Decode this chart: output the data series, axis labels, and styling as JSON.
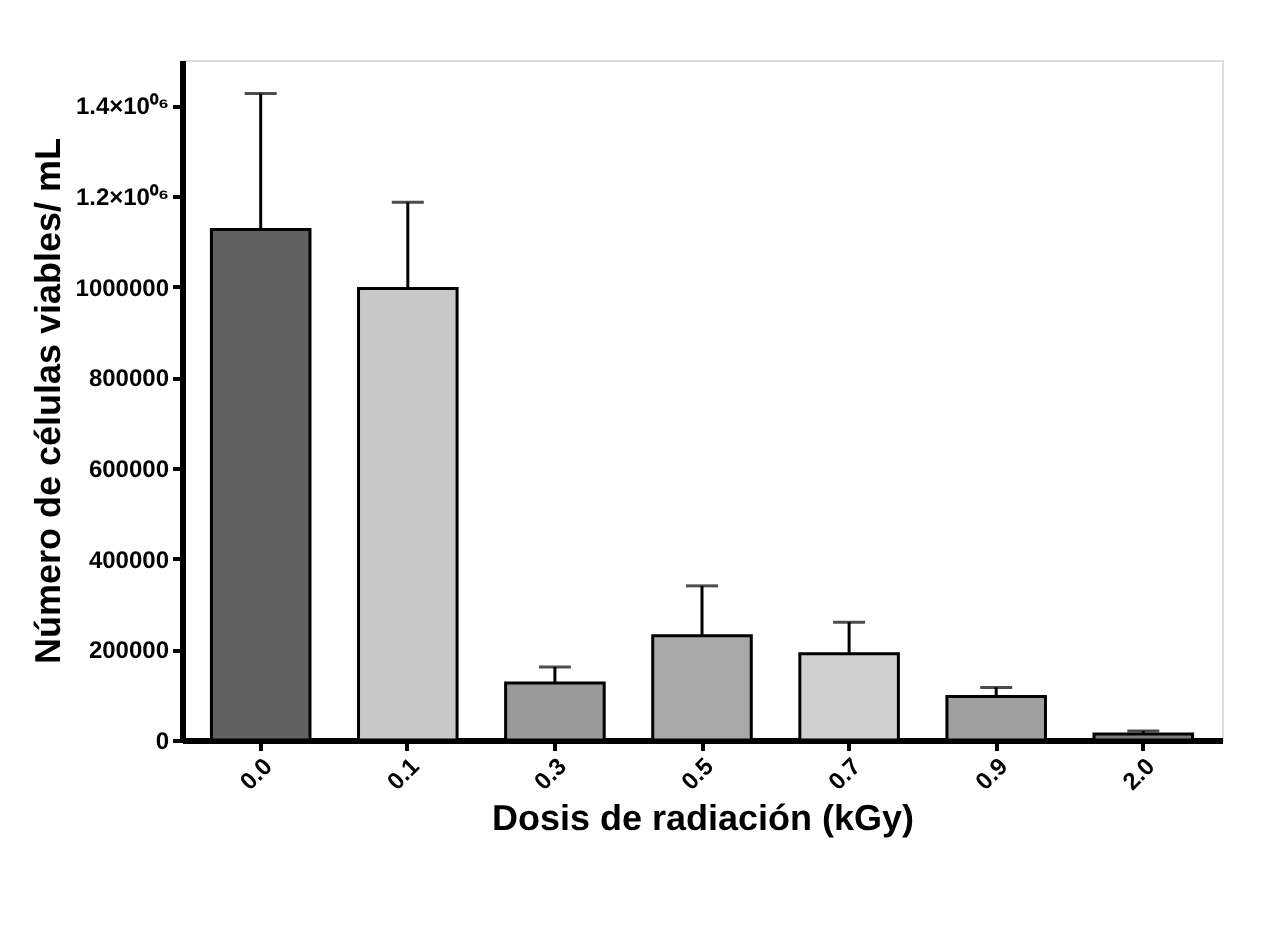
{
  "chart_data": {
    "type": "bar",
    "xlabel": "Dosis de radiación (kGy)",
    "ylabel": "Número de células viables/ mL",
    "categories": [
      "0.0",
      "0.1",
      "0.3",
      "0.5",
      "0.7",
      "0.9",
      "2.0"
    ],
    "values": [
      1126000,
      996000,
      126000,
      230000,
      190000,
      96000,
      13000
    ],
    "errors": [
      300000,
      190000,
      35000,
      110000,
      70000,
      20000,
      7000
    ],
    "colors": [
      "#606060",
      "#c8c8c8",
      "#9a9a9a",
      "#a8a8a8",
      "#d0d0d0",
      "#a0a0a0",
      "#808080"
    ],
    "ylim": [
      0,
      1500000
    ],
    "yticks": [
      0,
      200000,
      400000,
      600000,
      800000,
      1000000,
      {
        "value": 1200000,
        "label": "1.2×10⁰⁶"
      },
      {
        "value": 1400000,
        "label": "1.4×10⁰⁶"
      }
    ],
    "grid": false
  }
}
